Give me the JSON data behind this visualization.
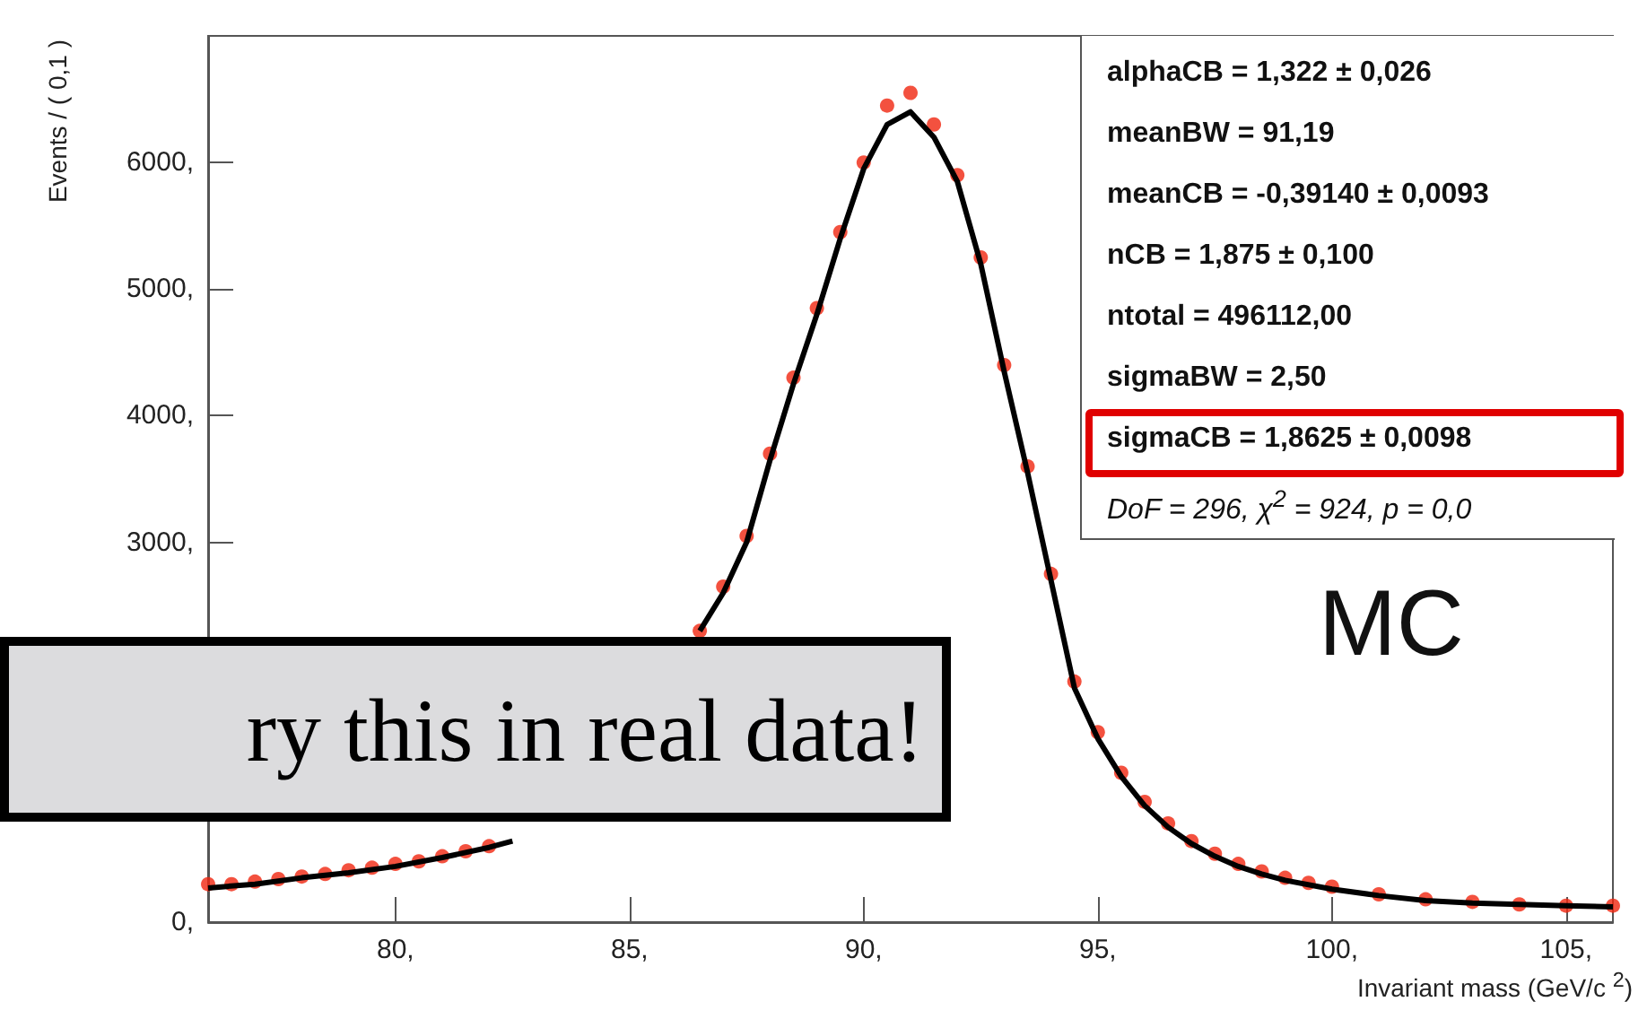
{
  "chart_data": {
    "type": "scatter",
    "xlabel": "Invariant mass (GeV/c $^{2}$)",
    "ylabel": "Events / ( 0,1 )",
    "xlim": [
      76,
      106
    ],
    "ylim": [
      0,
      7000
    ],
    "xticks": [
      {
        "value": 80,
        "label": "80,"
      },
      {
        "value": 85,
        "label": "85,"
      },
      {
        "value": 90,
        "label": "90,"
      },
      {
        "value": 95,
        "label": "95,"
      },
      {
        "value": 100,
        "label": "100,"
      },
      {
        "value": 105,
        "label": "105,"
      }
    ],
    "yticks": [
      {
        "value": 0,
        "label": "0,"
      },
      {
        "value": 1000,
        "label": null
      },
      {
        "value": 2000,
        "label": null
      },
      {
        "value": 3000,
        "label": "3000,"
      },
      {
        "value": 4000,
        "label": "4000,"
      },
      {
        "value": 5000,
        "label": "5000,"
      },
      {
        "value": 6000,
        "label": "6000,"
      }
    ],
    "grid": false,
    "series": [
      {
        "marker": "circle",
        "color": "#f0250f",
        "x": [
          76,
          76.5,
          77,
          77.5,
          78,
          78.5,
          79,
          79.5,
          80,
          80.5,
          81,
          81.5,
          82,
          86.5,
          87,
          87.5,
          88,
          88.5,
          89,
          89.5,
          90,
          90.5,
          91,
          91.5,
          92,
          92.5,
          93,
          93.5,
          94,
          94.5,
          95,
          95.5,
          96,
          96.5,
          97,
          97.5,
          98,
          98.5,
          99,
          99.5,
          100,
          101,
          102,
          103,
          104,
          105,
          106
        ],
        "values": [
          300,
          300,
          320,
          340,
          360,
          380,
          410,
          430,
          460,
          480,
          520,
          560,
          600,
          2300,
          2650,
          3050,
          3700,
          4300,
          4850,
          5450,
          6000,
          6450,
          6550,
          6300,
          5900,
          5250,
          4400,
          3600,
          2750,
          1900,
          1500,
          1180,
          950,
          780,
          640,
          540,
          460,
          400,
          350,
          310,
          280,
          220,
          180,
          160,
          140,
          130,
          130
        ]
      },
      {
        "type": "line",
        "marker": "none",
        "color": "#000000",
        "x": [
          76,
          77,
          78,
          79,
          80,
          81,
          82,
          82.5,
          83,
          84,
          85,
          86,
          86.5,
          87,
          87.5,
          88,
          88.5,
          89,
          89.5,
          90,
          90.5,
          91,
          91.5,
          92,
          92.5,
          93,
          93.5,
          94,
          94.5,
          95,
          95.5,
          96,
          96.5,
          97,
          97.5,
          98,
          98.5,
          99,
          100,
          101,
          102,
          103,
          104,
          105,
          106
        ],
        "values": [
          270,
          300,
          350,
          390,
          440,
          510,
          590,
          640,
          null,
          null,
          null,
          null,
          2300,
          2600,
          3000,
          3650,
          4250,
          4800,
          5400,
          5950,
          6300,
          6400,
          6200,
          5850,
          5200,
          4350,
          3550,
          2700,
          1850,
          1450,
          1150,
          920,
          750,
          620,
          520,
          440,
          380,
          330,
          260,
          210,
          170,
          150,
          140,
          130,
          120
        ]
      }
    ],
    "annotations": [
      "alphaCB =  1,322  ± 0,026",
      "meanBW =  91,19",
      "meanCB = -0,39140   ± 0,0093",
      "nCB =  1,875  ± 0,100",
      "ntotal =  496112,00",
      "sigmaBW =  2,50",
      "sigmaCB =  1,8625   ± 0,0098",
      "DoF = 296,  χ$^{2}$  = 924, p = 0,0",
      "MC",
      "ry this in real data!"
    ]
  }
}
